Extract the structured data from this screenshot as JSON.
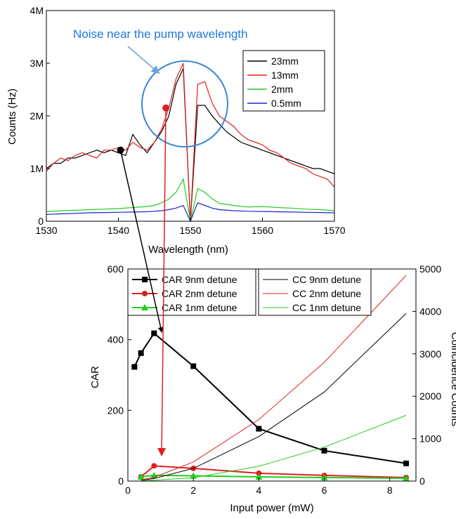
{
  "chart_data": [
    {
      "type": "line",
      "xlabel": "Wavelength (nm)",
      "ylabel": "Counts (Hz)",
      "xlim": [
        1530,
        1570
      ],
      "ylim": [
        0,
        4000000
      ],
      "xticks": [
        "1530",
        "1540",
        "1550",
        "1560",
        "1570"
      ],
      "yticks": [
        "0",
        "1M",
        "2M",
        "3M",
        "4M"
      ],
      "legend_placement": "top-right",
      "annotation": "Noise near the pump wavelength",
      "series": [
        {
          "name": "23mm",
          "color": "#000000",
          "x": [
            1530,
            1531,
            1532,
            1533,
            1534,
            1535,
            1536,
            1537,
            1538,
            1539,
            1540,
            1541,
            1542,
            1543,
            1544,
            1545,
            1546,
            1547,
            1548,
            1549,
            1550,
            1551,
            1552,
            1553,
            1554,
            1555,
            1556,
            1557,
            1558,
            1559,
            1560,
            1561,
            1562,
            1563,
            1564,
            1565,
            1566,
            1567,
            1568,
            1569,
            1570
          ],
          "y": [
            1000000,
            1100000,
            1100000,
            1200000,
            1200000,
            1250000,
            1300000,
            1350000,
            1300000,
            1350000,
            1300000,
            1250000,
            1650000,
            1450000,
            1300000,
            1500000,
            1700000,
            2000000,
            2600000,
            2900000,
            0,
            2200000,
            2200000,
            2000000,
            1850000,
            1700000,
            1600000,
            1500000,
            1450000,
            1400000,
            1350000,
            1300000,
            1250000,
            1200000,
            1150000,
            1100000,
            1050000,
            1000000,
            1000000,
            950000,
            900000
          ]
        },
        {
          "name": "13mm",
          "color": "#e02020",
          "x": [
            1530,
            1531,
            1532,
            1533,
            1534,
            1535,
            1536,
            1537,
            1538,
            1539,
            1540,
            1541,
            1542,
            1543,
            1544,
            1545,
            1546,
            1547,
            1548,
            1549,
            1550,
            1551,
            1552,
            1553,
            1554,
            1555,
            1556,
            1557,
            1558,
            1559,
            1560,
            1561,
            1562,
            1563,
            1564,
            1565,
            1566,
            1567,
            1568,
            1569,
            1570
          ],
          "y": [
            950000,
            1100000,
            1200000,
            1150000,
            1250000,
            1300000,
            1250000,
            1200000,
            1350000,
            1350000,
            1400000,
            1350000,
            1500000,
            1400000,
            1350000,
            1500000,
            1750000,
            2150000,
            2700000,
            3000000,
            0,
            2600000,
            2650000,
            2250000,
            2000000,
            1900000,
            1800000,
            1650000,
            1550000,
            1500000,
            1450000,
            1350000,
            1300000,
            1200000,
            1100000,
            1050000,
            1000000,
            900000,
            850000,
            800000,
            650000
          ]
        },
        {
          "name": "2mm",
          "color": "#22cc22",
          "x": [
            1530,
            1532,
            1534,
            1536,
            1538,
            1540,
            1542,
            1544,
            1545,
            1546,
            1547,
            1548,
            1549,
            1550,
            1551,
            1552,
            1553,
            1554,
            1556,
            1558,
            1560,
            1562,
            1564,
            1566,
            1568,
            1570
          ],
          "y": [
            180000,
            200000,
            210000,
            220000,
            230000,
            240000,
            260000,
            280000,
            300000,
            350000,
            420000,
            550000,
            800000,
            0,
            620000,
            550000,
            430000,
            340000,
            300000,
            270000,
            280000,
            260000,
            250000,
            230000,
            220000,
            200000
          ]
        },
        {
          "name": "0.5mm",
          "color": "#2222cc",
          "x": [
            1530,
            1532,
            1534,
            1536,
            1538,
            1540,
            1542,
            1544,
            1545,
            1546,
            1547,
            1548,
            1549,
            1550,
            1551,
            1552,
            1553,
            1554,
            1556,
            1558,
            1560,
            1562,
            1564,
            1566,
            1568,
            1570
          ],
          "y": [
            130000,
            140000,
            150000,
            160000,
            165000,
            170000,
            175000,
            180000,
            190000,
            200000,
            220000,
            250000,
            300000,
            0,
            350000,
            300000,
            250000,
            220000,
            200000,
            190000,
            185000,
            180000,
            175000,
            170000,
            165000,
            160000
          ]
        }
      ],
      "markers": [
        {
          "x": 1540.3,
          "y": 1350000,
          "color": "#000000"
        },
        {
          "x": 1546.6,
          "y": 2150000,
          "color": "#e02020"
        }
      ]
    },
    {
      "type": "line",
      "xlabel": "Input power (mW)",
      "ylabel": "CAR",
      "y2label": "Coincidence Counts",
      "xlim": [
        0,
        8.8
      ],
      "ylim": [
        0,
        600
      ],
      "y2lim": [
        0,
        5000
      ],
      "xticks": [
        "0",
        "2",
        "4",
        "6",
        "8"
      ],
      "yticks": [
        "0",
        "200",
        "400",
        "600"
      ],
      "y2ticks": [
        "0",
        "1000",
        "2000",
        "3000",
        "4000",
        "5000"
      ],
      "series": [
        {
          "name": "CAR 9nm detune",
          "color": "#000000",
          "marker": "square",
          "axis": "left",
          "x": [
            0.2,
            0.4,
            0.8,
            2,
            4,
            6,
            8.5
          ],
          "y": [
            323,
            362,
            418,
            325,
            148,
            86,
            50
          ]
        },
        {
          "name": "CAR 2nm detune",
          "color": "#e02020",
          "marker": "circle",
          "axis": "left",
          "x": [
            0.4,
            0.8,
            2,
            4,
            6,
            8.5
          ],
          "y": [
            12,
            43,
            36,
            22,
            16,
            10
          ]
        },
        {
          "name": "CAR 1nm detune",
          "color": "#22cc22",
          "marker": "triangle",
          "axis": "left",
          "x": [
            0.4,
            0.8,
            2,
            4,
            6,
            8.5
          ],
          "y": [
            12,
            16,
            15,
            12,
            10,
            8
          ]
        },
        {
          "name": "CC 9nm detune",
          "color": "#000000",
          "axis": "right",
          "x": [
            0.4,
            0.8,
            2,
            4,
            6,
            8.5
          ],
          "y": [
            20,
            60,
            300,
            1050,
            2100,
            3950
          ]
        },
        {
          "name": "CC 2nm detune",
          "color": "#e02020",
          "axis": "right",
          "x": [
            0.4,
            0.8,
            2,
            4,
            6,
            8.5
          ],
          "y": [
            30,
            90,
            450,
            1450,
            2800,
            4850
          ]
        },
        {
          "name": "CC 1nm detune",
          "color": "#22cc22",
          "axis": "right",
          "x": [
            0.4,
            0.8,
            2,
            4,
            6,
            8.5
          ],
          "y": [
            10,
            20,
            80,
            350,
            800,
            1550
          ]
        }
      ]
    }
  ]
}
